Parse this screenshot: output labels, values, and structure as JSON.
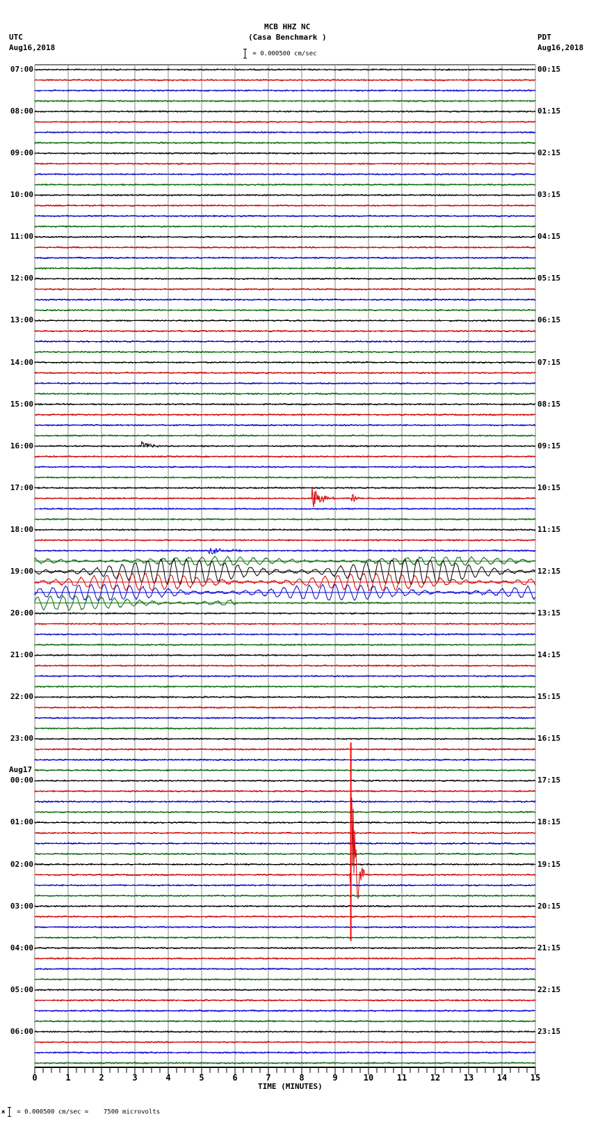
{
  "header": {
    "station": "MCB HHZ NC",
    "site": "(Casa Benchmark )",
    "scale_text": "= 0.000500 cm/sec",
    "left_tz": "UTC",
    "left_date": "Aug16,2018",
    "right_tz": "PDT",
    "right_date": "Aug16,2018"
  },
  "footer": {
    "scale_prefix": "ж",
    "scale_text": "= 0.000500 cm/sec =    7500 microvolts"
  },
  "chart_data": {
    "type": "line",
    "title": "MCB HHZ NC (Casa Benchmark )",
    "subtitle": "Helicorder seismogram, 24 hours, 15-minute lines",
    "xlabel": "TIME (MINUTES)",
    "ylabel_left": "UTC",
    "ylabel_right": "PDT",
    "x_ticks": [
      0,
      1,
      2,
      3,
      4,
      5,
      6,
      7,
      8,
      9,
      10,
      11,
      12,
      13,
      14,
      15
    ],
    "xlim": [
      0,
      15
    ],
    "grid": true,
    "trace_colors": [
      "#000000",
      "#cc0000",
      "#0000cc",
      "#006600"
    ],
    "minutes_per_line": 15,
    "lines_count": 96,
    "left_hour_labels": [
      "07:00",
      "08:00",
      "09:00",
      "10:00",
      "11:00",
      "12:00",
      "13:00",
      "14:00",
      "15:00",
      "16:00",
      "17:00",
      "18:00",
      "19:00",
      "20:00",
      "21:00",
      "22:00",
      "23:00",
      "Aug17\n00:00",
      "01:00",
      "02:00",
      "03:00",
      "04:00",
      "05:00",
      "06:00"
    ],
    "right_hour_labels": [
      "00:15",
      "01:15",
      "02:15",
      "03:15",
      "04:15",
      "05:15",
      "06:15",
      "07:15",
      "08:15",
      "09:15",
      "10:15",
      "11:15",
      "12:15",
      "13:15",
      "14:15",
      "15:15",
      "16:15",
      "17:15",
      "18:15",
      "19:15",
      "20:15",
      "21:15",
      "22:15",
      "23:15"
    ],
    "scale": "0.000500 cm/sec = 7500 microvolts",
    "events": [
      {
        "line": 36,
        "minute_start": 3.2,
        "minute_end": 3.9,
        "amp": 8,
        "label": "small burst 16:00"
      },
      {
        "line": 41,
        "minute_start": 8.3,
        "minute_end": 9.0,
        "amp": 22,
        "label": "local event 17:30 (blue)"
      },
      {
        "line": 41,
        "minute_start": 9.5,
        "minute_end": 9.8,
        "amp": 10,
        "label": "aftershock"
      },
      {
        "line": 46,
        "minute_start": 5.2,
        "minute_end": 6.5,
        "amp": 6,
        "label": "teleseism P onset 18:30"
      },
      {
        "line": 47,
        "minute_start": 0.0,
        "minute_end": 15.0,
        "amp": 6,
        "label": "surface waves start"
      },
      {
        "line": 48,
        "minute_start": 0.0,
        "minute_end": 15.0,
        "amp": 18,
        "label": "large surface waves 19:00"
      },
      {
        "line": 49,
        "minute_start": 0.0,
        "minute_end": 15.0,
        "amp": 12,
        "label": "surface waves 19:15"
      },
      {
        "line": 50,
        "minute_start": 0.0,
        "minute_end": 15.0,
        "amp": 11,
        "label": "surface waves 19:30"
      },
      {
        "line": 51,
        "minute_start": 0.0,
        "minute_end": 6.0,
        "amp": 10,
        "label": "surface waves 19:45"
      },
      {
        "line": 77,
        "minute_start": 9.45,
        "minute_end": 9.9,
        "amp": 190,
        "label": "large spike 02:15 (red)"
      }
    ]
  }
}
